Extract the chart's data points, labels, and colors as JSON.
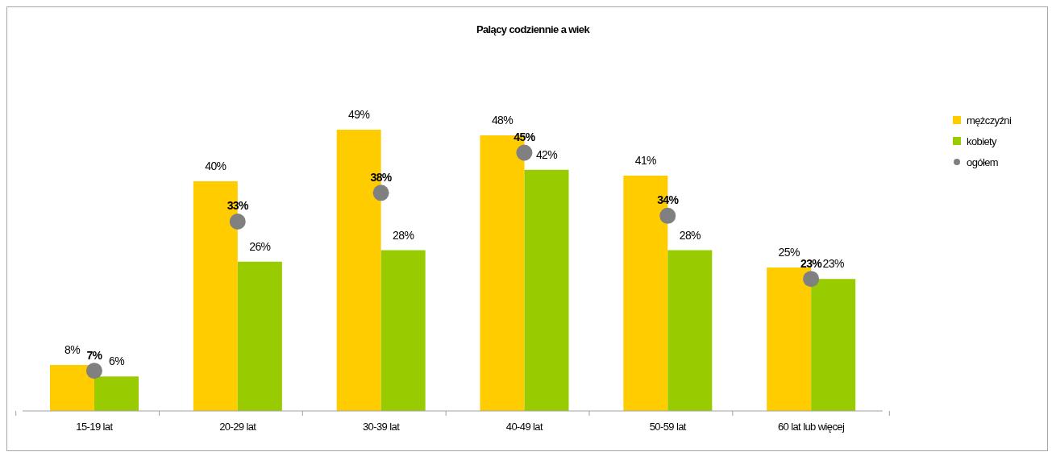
{
  "chart_data": {
    "type": "bar",
    "title": "Palący codziennie a wiek",
    "categories": [
      "15-19 lat",
      "20-29 lat",
      "30-39 lat",
      "40-49 lat",
      "50-59 lat",
      "60 lat lub więcej"
    ],
    "series": [
      {
        "name": "mężczyźni",
        "color": "#ffcc00",
        "values": [
          8,
          40,
          49,
          48,
          41,
          25
        ],
        "value_labels": [
          "8%",
          "40%",
          "49%",
          "48%",
          "41%",
          "25%"
        ]
      },
      {
        "name": "kobiety",
        "color": "#99cc00",
        "values": [
          6,
          26,
          28,
          42,
          28,
          23
        ],
        "value_labels": [
          "6%",
          "26%",
          "28%",
          "42%",
          "28%",
          "23%"
        ]
      },
      {
        "name": "ogółem",
        "type": "scatter",
        "color": "#808080",
        "values": [
          7,
          33,
          38,
          45,
          34,
          23
        ],
        "value_labels": [
          "7%",
          "33%",
          "38%",
          "45%",
          "34%",
          "23%"
        ]
      }
    ],
    "marker": "circle",
    "legend": "right",
    "tick_labels": "x"
  }
}
